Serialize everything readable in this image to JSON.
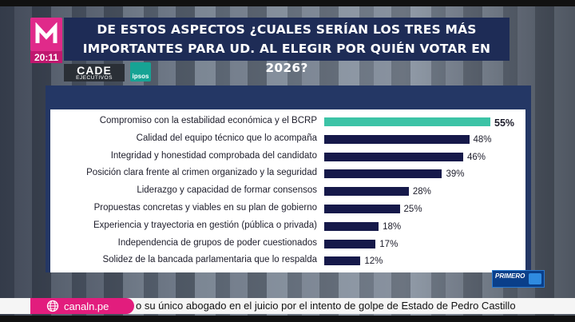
{
  "header": {
    "time": "20:11",
    "title_line1": "DE ESTOS ASPECTOS ¿CUALES SERÍAN LOS TRES MÁS",
    "title_line2": "IMPORTANTES PARA UD. AL ELEGIR POR QUIÉN VOTAR EN 2026?",
    "cade_main": "CADE",
    "cade_sub": "EJECUTIVOS",
    "ipsos": "ipsos"
  },
  "chart_data": {
    "type": "bar",
    "orientation": "horizontal",
    "categories": [
      "Compromiso con la estabilidad económica y el BCRP",
      "Calidad del equipo técnico que lo acompaña",
      "Integridad y honestidad comprobada del candidato",
      "Posición clara frente al crimen organizado y la seguridad",
      "Liderazgo y capacidad de formar consensos",
      "Propuestas concretas y viables en su plan de gobierno",
      "Experiencia y trayectoria en gestión (pública o privada)",
      "Independencia de grupos de poder cuestionados",
      "Solidez de la bancada parlamentaria que lo respalda"
    ],
    "values": [
      55,
      48,
      46,
      39,
      28,
      25,
      18,
      17,
      12
    ],
    "value_labels": [
      "55%",
      "48%",
      "46%",
      "39%",
      "28%",
      "25%",
      "18%",
      "17%",
      "12%"
    ],
    "xlim": [
      0,
      55
    ],
    "highlight_color": "#3cc3a6",
    "bar_color": "#16194a"
  },
  "footer": {
    "channel": "canaln.pe",
    "ticker": "o su único abogado en el juicio por el intento de golpe de Estado de Pedro Castillo",
    "program": "PRIMERO"
  }
}
